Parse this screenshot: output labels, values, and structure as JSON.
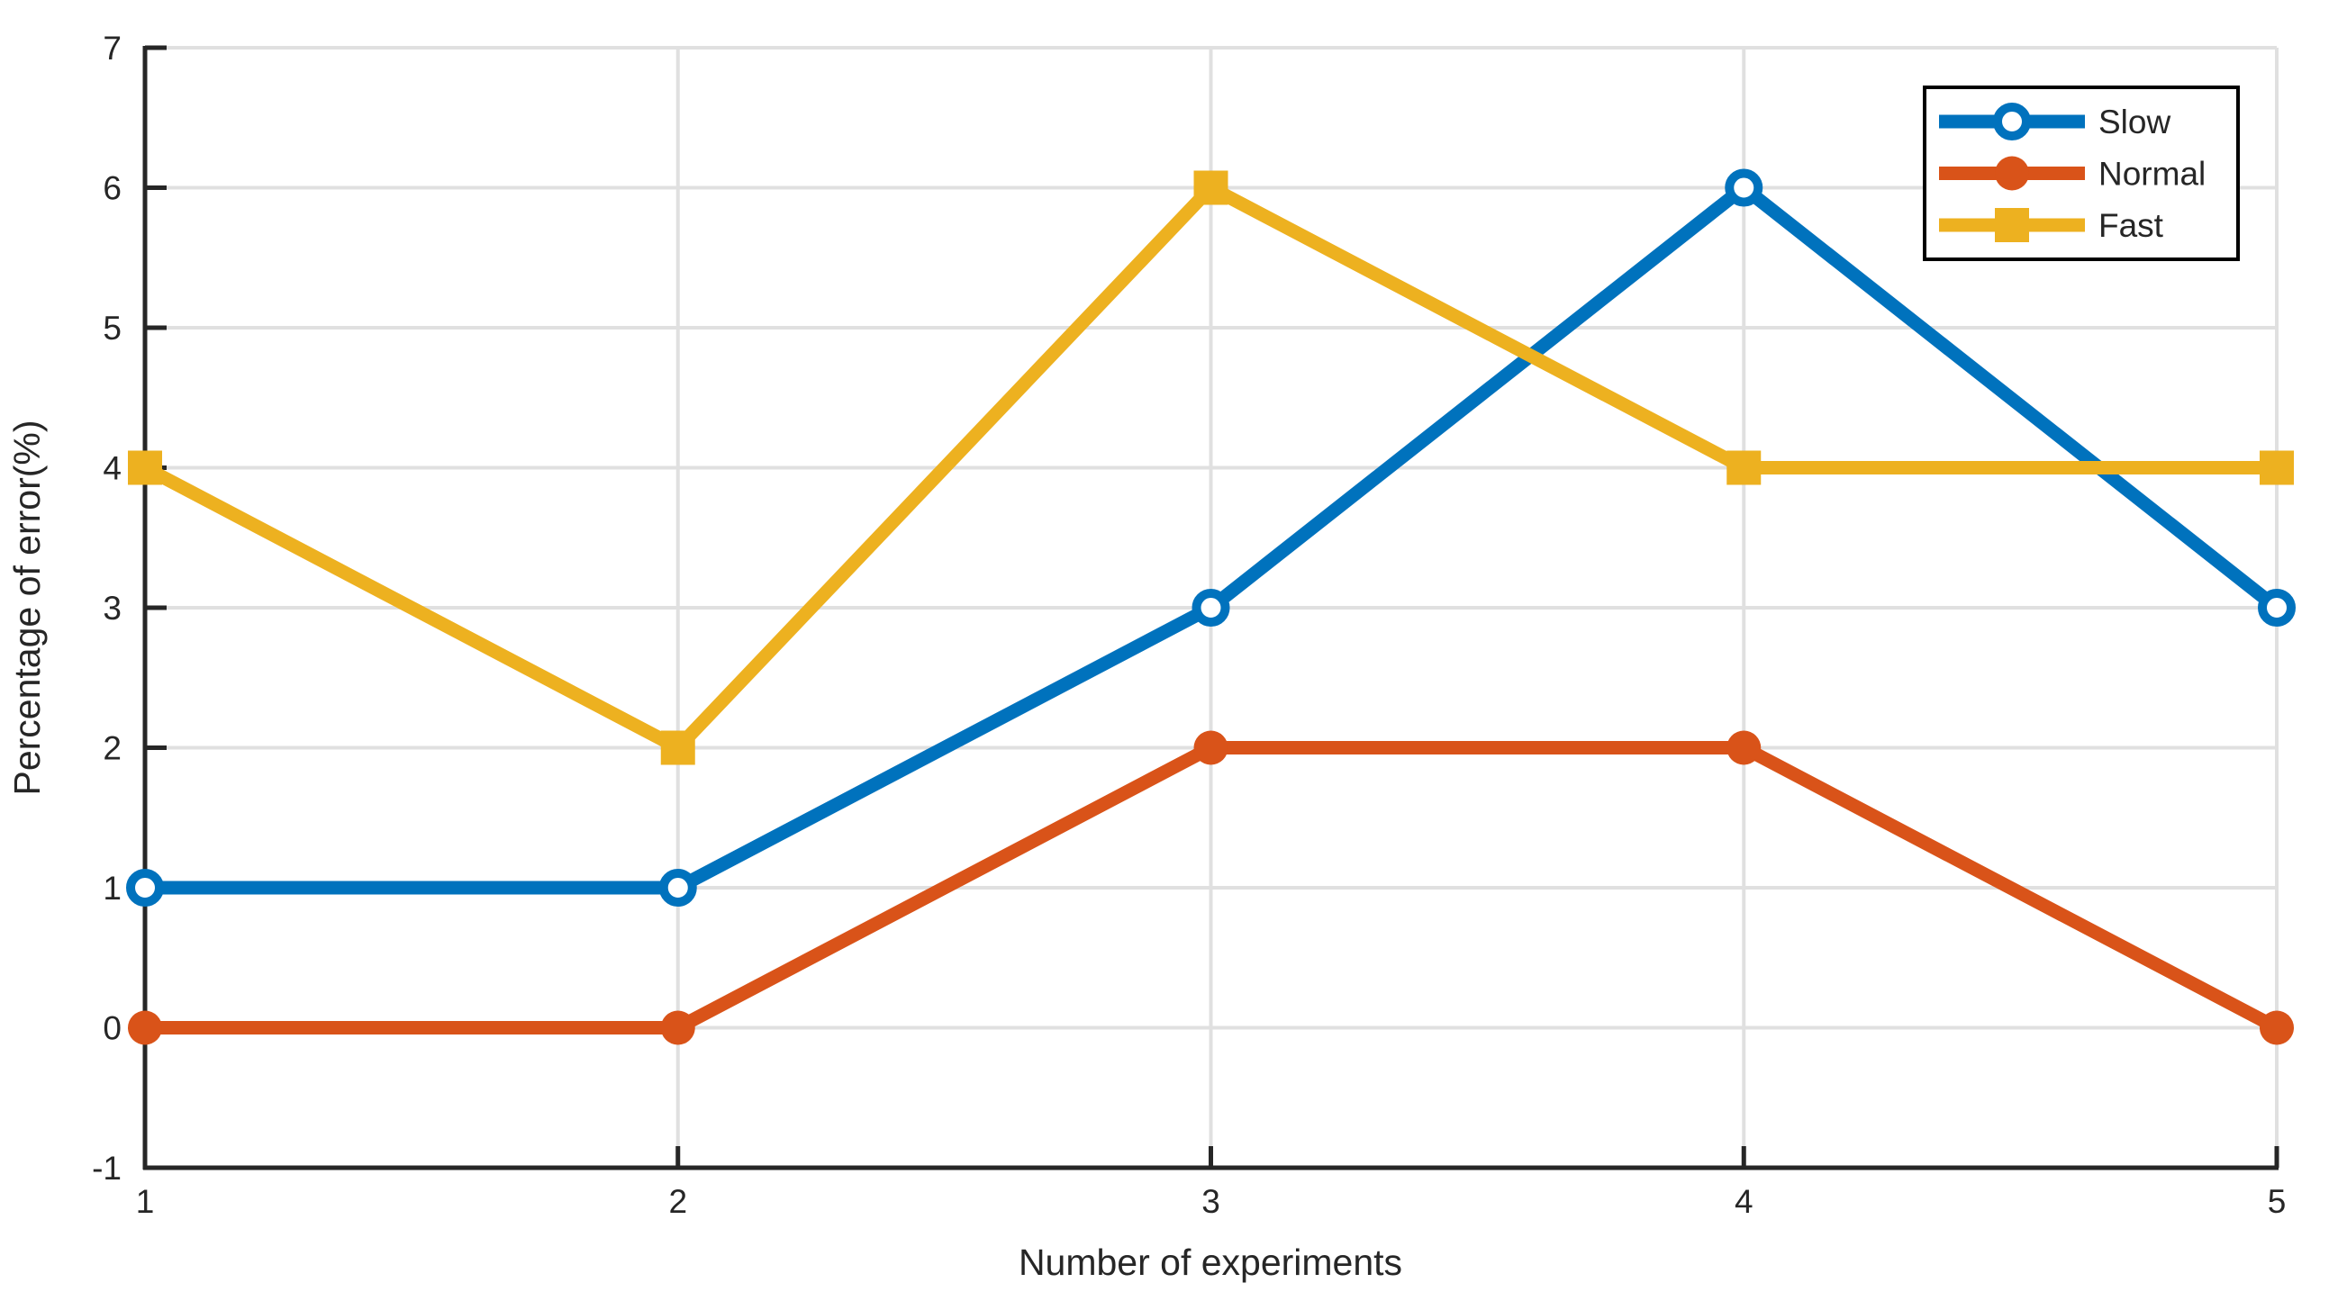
{
  "chart_data": {
    "type": "line",
    "title": "",
    "xlabel": "Number of experiments",
    "ylabel": "Percentage of error(%)",
    "x": [
      1,
      2,
      3,
      4,
      5
    ],
    "xticks": [
      1,
      2,
      3,
      4,
      5
    ],
    "yticks": [
      -1,
      0,
      1,
      2,
      3,
      4,
      5,
      6,
      7
    ],
    "xlim": [
      1,
      5
    ],
    "ylim": [
      -1,
      7
    ],
    "grid": true,
    "legend_position": "top-right",
    "series": [
      {
        "name": "Slow",
        "color": "#0072BD",
        "marker": "circle-open",
        "values": [
          1,
          1,
          3,
          6,
          3
        ]
      },
      {
        "name": "Normal",
        "color": "#D95319",
        "marker": "circle-filled",
        "values": [
          0,
          0,
          2,
          2,
          0
        ]
      },
      {
        "name": "Fast",
        "color": "#EDB120",
        "marker": "square-filled",
        "values": [
          4,
          2,
          6,
          4,
          4
        ]
      }
    ],
    "colors": {
      "axis": "#262626",
      "grid": "#E0E0E0",
      "background": "#FFFFFF",
      "legend_border": "#000000"
    }
  }
}
